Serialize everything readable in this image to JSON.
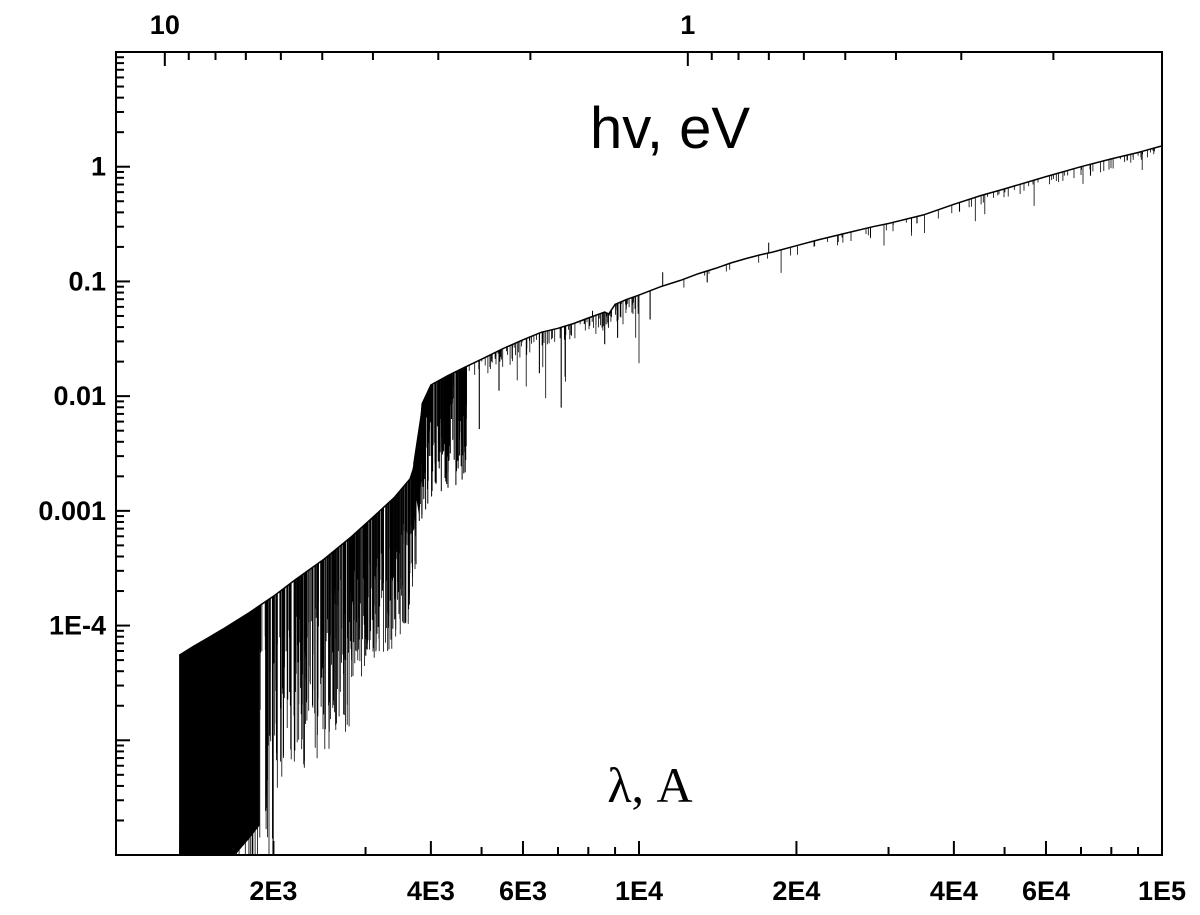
{
  "chart_data": {
    "type": "line",
    "title": "",
    "xlabel": "λ, A",
    "ylabel": "",
    "x2label": "hv, eV",
    "xscale": "log",
    "yscale": "log",
    "xlim": [
      1000,
      100000
    ],
    "ylim": [
      1e-06,
      10
    ],
    "x2lim": [
      12.398,
      0.12398
    ],
    "grid": false,
    "legend": "none",
    "line_color": "#000000",
    "x_ticks": [
      "2E3",
      "4E3",
      "6E3",
      "1E4",
      "2E4",
      "4E4",
      "6E4",
      "1E5"
    ],
    "y_ticks": [
      "1E-4",
      "0.001",
      "0.01",
      "0.1",
      "1"
    ],
    "x2_ticks": [
      "10",
      "1"
    ],
    "series": [
      {
        "x": [
          1320,
          1400,
          1500,
          1600,
          1800,
          2000,
          2200,
          2500,
          2800,
          3100,
          3400,
          3650,
          3700,
          3720,
          3780,
          3850,
          4000,
          4300,
          4600,
          5000,
          5500,
          6000,
          6500,
          7000,
          7500,
          8000,
          8600,
          8750,
          9000,
          9500,
          10000,
          11000,
          12000,
          13000,
          14000,
          15000,
          16000,
          17000,
          18000,
          20000,
          22000,
          25000,
          28000,
          30000,
          35000,
          40000,
          45000,
          50000,
          60000,
          70000,
          80000,
          90000,
          100000
        ],
        "y": [
          5.5e-05,
          6.5e-05,
          7.8e-05,
          9.3e-05,
          0.00013,
          0.00018,
          0.00025,
          0.00038,
          0.00058,
          0.00088,
          0.0013,
          0.0019,
          0.0023,
          0.0026,
          0.0028,
          0.0086,
          0.0125,
          0.015,
          0.0175,
          0.021,
          0.026,
          0.031,
          0.036,
          0.039,
          0.043,
          0.048,
          0.054,
          0.052,
          0.063,
          0.07,
          0.076,
          0.09,
          0.102,
          0.117,
          0.13,
          0.145,
          0.158,
          0.17,
          0.18,
          0.205,
          0.23,
          0.265,
          0.3,
          0.32,
          0.38,
          0.47,
          0.56,
          0.64,
          0.82,
          1.0,
          1.17,
          1.33,
          1.52
        ]
      }
    ]
  }
}
